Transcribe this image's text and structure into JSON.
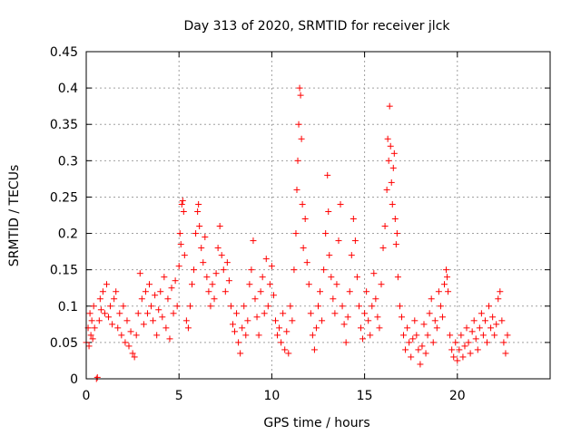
{
  "chart_data": {
    "type": "scatter",
    "title": "Day 313 of 2020, SRMTID for receiver jlck",
    "xlabel": "GPS time / hours",
    "ylabel": "SRMTID / TECUs",
    "xlim": [
      0,
      25
    ],
    "ylim": [
      0,
      0.45
    ],
    "xticks": [
      0,
      5,
      10,
      15,
      20
    ],
    "xtick_labels": [
      "0",
      "5",
      "10",
      "15",
      "20"
    ],
    "yticks": [
      0,
      0.05,
      0.1,
      0.15,
      0.2,
      0.25,
      0.3,
      0.35,
      0.4,
      0.45
    ],
    "ytick_labels": [
      "0",
      "0.05",
      "0.1",
      "0.15",
      "0.2",
      "0.25",
      "0.3",
      "0.35",
      "0.4",
      "0.45"
    ],
    "grid": true,
    "marker": "+",
    "color": "#ff0000",
    "series": [
      {
        "name": "SRMTID",
        "points": [
          [
            0.0,
            0.05
          ],
          [
            0.1,
            0.07
          ],
          [
            0.15,
            0.045
          ],
          [
            0.2,
            0.09
          ],
          [
            0.25,
            0.06
          ],
          [
            0.3,
            0.08
          ],
          [
            0.35,
            0.055
          ],
          [
            0.4,
            0.1
          ],
          [
            0.45,
            0.07
          ],
          [
            0.55,
            0.0
          ],
          [
            0.6,
            0.002
          ],
          [
            0.7,
            0.08
          ],
          [
            0.75,
            0.11
          ],
          [
            0.8,
            0.095
          ],
          [
            0.9,
            0.12
          ],
          [
            1.0,
            0.09
          ],
          [
            1.1,
            0.13
          ],
          [
            1.2,
            0.085
          ],
          [
            1.3,
            0.1
          ],
          [
            1.4,
            0.075
          ],
          [
            1.5,
            0.11
          ],
          [
            1.6,
            0.12
          ],
          [
            1.7,
            0.07
          ],
          [
            1.8,
            0.09
          ],
          [
            1.9,
            0.06
          ],
          [
            2.0,
            0.1
          ],
          [
            2.1,
            0.05
          ],
          [
            2.2,
            0.08
          ],
          [
            2.3,
            0.045
          ],
          [
            2.4,
            0.065
          ],
          [
            2.5,
            0.035
          ],
          [
            2.6,
            0.03
          ],
          [
            2.7,
            0.06
          ],
          [
            2.8,
            0.09
          ],
          [
            2.9,
            0.145
          ],
          [
            3.0,
            0.11
          ],
          [
            3.1,
            0.075
          ],
          [
            3.2,
            0.12
          ],
          [
            3.3,
            0.09
          ],
          [
            3.4,
            0.13
          ],
          [
            3.5,
            0.1
          ],
          [
            3.6,
            0.08
          ],
          [
            3.7,
            0.115
          ],
          [
            3.8,
            0.06
          ],
          [
            3.9,
            0.095
          ],
          [
            4.0,
            0.12
          ],
          [
            4.1,
            0.085
          ],
          [
            4.2,
            0.14
          ],
          [
            4.3,
            0.07
          ],
          [
            4.4,
            0.11
          ],
          [
            4.5,
            0.055
          ],
          [
            4.6,
            0.125
          ],
          [
            4.7,
            0.09
          ],
          [
            4.8,
            0.135
          ],
          [
            4.9,
            0.1
          ],
          [
            5.0,
            0.155
          ],
          [
            5.05,
            0.2
          ],
          [
            5.1,
            0.185
          ],
          [
            5.15,
            0.24
          ],
          [
            5.2,
            0.245
          ],
          [
            5.25,
            0.23
          ],
          [
            5.3,
            0.17
          ],
          [
            5.4,
            0.08
          ],
          [
            5.5,
            0.07
          ],
          [
            5.6,
            0.1
          ],
          [
            5.7,
            0.13
          ],
          [
            5.8,
            0.15
          ],
          [
            5.9,
            0.2
          ],
          [
            6.0,
            0.23
          ],
          [
            6.05,
            0.24
          ],
          [
            6.1,
            0.21
          ],
          [
            6.2,
            0.18
          ],
          [
            6.3,
            0.16
          ],
          [
            6.4,
            0.195
          ],
          [
            6.5,
            0.14
          ],
          [
            6.6,
            0.12
          ],
          [
            6.7,
            0.1
          ],
          [
            6.8,
            0.13
          ],
          [
            6.9,
            0.11
          ],
          [
            7.0,
            0.145
          ],
          [
            7.1,
            0.18
          ],
          [
            7.2,
            0.21
          ],
          [
            7.3,
            0.17
          ],
          [
            7.4,
            0.15
          ],
          [
            7.5,
            0.12
          ],
          [
            7.6,
            0.16
          ],
          [
            7.7,
            0.135
          ],
          [
            7.8,
            0.1
          ],
          [
            7.9,
            0.075
          ],
          [
            8.0,
            0.065
          ],
          [
            8.1,
            0.09
          ],
          [
            8.2,
            0.05
          ],
          [
            8.3,
            0.035
          ],
          [
            8.4,
            0.07
          ],
          [
            8.5,
            0.1
          ],
          [
            8.6,
            0.06
          ],
          [
            8.7,
            0.08
          ],
          [
            8.8,
            0.13
          ],
          [
            8.9,
            0.15
          ],
          [
            9.0,
            0.19
          ],
          [
            9.1,
            0.11
          ],
          [
            9.2,
            0.085
          ],
          [
            9.3,
            0.06
          ],
          [
            9.4,
            0.12
          ],
          [
            9.5,
            0.14
          ],
          [
            9.6,
            0.09
          ],
          [
            9.7,
            0.165
          ],
          [
            9.8,
            0.1
          ],
          [
            9.9,
            0.13
          ],
          [
            10.0,
            0.155
          ],
          [
            10.1,
            0.115
          ],
          [
            10.2,
            0.08
          ],
          [
            10.3,
            0.06
          ],
          [
            10.4,
            0.07
          ],
          [
            10.5,
            0.05
          ],
          [
            10.6,
            0.09
          ],
          [
            10.7,
            0.04
          ],
          [
            10.8,
            0.065
          ],
          [
            10.9,
            0.035
          ],
          [
            11.0,
            0.1
          ],
          [
            11.1,
            0.08
          ],
          [
            11.2,
            0.15
          ],
          [
            11.3,
            0.2
          ],
          [
            11.35,
            0.26
          ],
          [
            11.4,
            0.3
          ],
          [
            11.45,
            0.35
          ],
          [
            11.5,
            0.4
          ],
          [
            11.55,
            0.39
          ],
          [
            11.6,
            0.33
          ],
          [
            11.65,
            0.24
          ],
          [
            11.7,
            0.18
          ],
          [
            11.8,
            0.22
          ],
          [
            11.9,
            0.16
          ],
          [
            12.0,
            0.13
          ],
          [
            12.1,
            0.09
          ],
          [
            12.2,
            0.06
          ],
          [
            12.3,
            0.04
          ],
          [
            12.4,
            0.07
          ],
          [
            12.5,
            0.1
          ],
          [
            12.6,
            0.12
          ],
          [
            12.7,
            0.08
          ],
          [
            12.8,
            0.15
          ],
          [
            12.9,
            0.2
          ],
          [
            13.0,
            0.28
          ],
          [
            13.05,
            0.23
          ],
          [
            13.1,
            0.17
          ],
          [
            13.2,
            0.14
          ],
          [
            13.3,
            0.11
          ],
          [
            13.4,
            0.09
          ],
          [
            13.5,
            0.13
          ],
          [
            13.6,
            0.19
          ],
          [
            13.7,
            0.24
          ],
          [
            13.8,
            0.1
          ],
          [
            13.9,
            0.075
          ],
          [
            14.0,
            0.05
          ],
          [
            14.1,
            0.085
          ],
          [
            14.2,
            0.12
          ],
          [
            14.3,
            0.17
          ],
          [
            14.4,
            0.22
          ],
          [
            14.5,
            0.19
          ],
          [
            14.6,
            0.14
          ],
          [
            14.7,
            0.1
          ],
          [
            14.8,
            0.07
          ],
          [
            14.9,
            0.055
          ],
          [
            15.0,
            0.09
          ],
          [
            15.1,
            0.12
          ],
          [
            15.2,
            0.08
          ],
          [
            15.3,
            0.06
          ],
          [
            15.4,
            0.1
          ],
          [
            15.5,
            0.145
          ],
          [
            15.6,
            0.11
          ],
          [
            15.7,
            0.085
          ],
          [
            15.8,
            0.07
          ],
          [
            15.9,
            0.13
          ],
          [
            16.0,
            0.18
          ],
          [
            16.1,
            0.21
          ],
          [
            16.2,
            0.26
          ],
          [
            16.25,
            0.33
          ],
          [
            16.3,
            0.3
          ],
          [
            16.35,
            0.375
          ],
          [
            16.4,
            0.32
          ],
          [
            16.45,
            0.27
          ],
          [
            16.5,
            0.24
          ],
          [
            16.55,
            0.29
          ],
          [
            16.6,
            0.31
          ],
          [
            16.65,
            0.22
          ],
          [
            16.7,
            0.185
          ],
          [
            16.75,
            0.2
          ],
          [
            16.8,
            0.14
          ],
          [
            16.9,
            0.1
          ],
          [
            17.0,
            0.085
          ],
          [
            17.1,
            0.06
          ],
          [
            17.2,
            0.04
          ],
          [
            17.3,
            0.07
          ],
          [
            17.4,
            0.05
          ],
          [
            17.5,
            0.03
          ],
          [
            17.6,
            0.055
          ],
          [
            17.7,
            0.08
          ],
          [
            17.8,
            0.06
          ],
          [
            17.9,
            0.04
          ],
          [
            18.0,
            0.02
          ],
          [
            18.1,
            0.045
          ],
          [
            18.2,
            0.075
          ],
          [
            18.3,
            0.035
          ],
          [
            18.4,
            0.06
          ],
          [
            18.5,
            0.09
          ],
          [
            18.6,
            0.11
          ],
          [
            18.7,
            0.05
          ],
          [
            18.8,
            0.08
          ],
          [
            18.9,
            0.07
          ],
          [
            19.0,
            0.12
          ],
          [
            19.1,
            0.1
          ],
          [
            19.2,
            0.085
          ],
          [
            19.3,
            0.13
          ],
          [
            19.4,
            0.15
          ],
          [
            19.45,
            0.14
          ],
          [
            19.5,
            0.12
          ],
          [
            19.6,
            0.06
          ],
          [
            19.7,
            0.04
          ],
          [
            19.8,
            0.03
          ],
          [
            19.9,
            0.05
          ],
          [
            20.0,
            0.025
          ],
          [
            20.1,
            0.04
          ],
          [
            20.2,
            0.06
          ],
          [
            20.3,
            0.03
          ],
          [
            20.4,
            0.045
          ],
          [
            20.5,
            0.07
          ],
          [
            20.6,
            0.05
          ],
          [
            20.7,
            0.035
          ],
          [
            20.8,
            0.065
          ],
          [
            20.9,
            0.08
          ],
          [
            21.0,
            0.055
          ],
          [
            21.1,
            0.04
          ],
          [
            21.2,
            0.07
          ],
          [
            21.3,
            0.09
          ],
          [
            21.4,
            0.06
          ],
          [
            21.5,
            0.08
          ],
          [
            21.6,
            0.05
          ],
          [
            21.7,
            0.1
          ],
          [
            21.8,
            0.07
          ],
          [
            21.9,
            0.085
          ],
          [
            22.0,
            0.06
          ],
          [
            22.1,
            0.075
          ],
          [
            22.2,
            0.11
          ],
          [
            22.3,
            0.12
          ],
          [
            22.4,
            0.08
          ],
          [
            22.5,
            0.05
          ],
          [
            22.6,
            0.035
          ],
          [
            22.7,
            0.06
          ]
        ]
      }
    ]
  }
}
